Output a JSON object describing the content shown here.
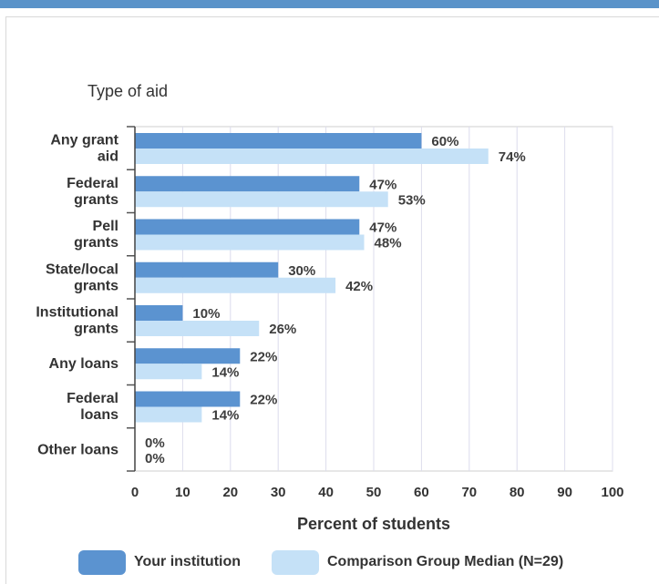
{
  "chart_data": {
    "type": "bar",
    "orientation": "horizontal",
    "title": "Type of aid",
    "xlabel": "Percent of students",
    "xlim": [
      0,
      100
    ],
    "xticks": [
      "0",
      "10",
      "20",
      "30",
      "40",
      "50",
      "60",
      "70",
      "80",
      "90",
      "100"
    ],
    "grid": true,
    "legend_position": "bottom",
    "categories": [
      [
        "Any grant",
        "aid"
      ],
      [
        "Federal",
        "grants"
      ],
      [
        "Pell",
        "grants"
      ],
      [
        "State/local",
        "grants"
      ],
      [
        "Institutional",
        "grants"
      ],
      [
        "Any loans"
      ],
      [
        "Federal",
        "loans"
      ],
      [
        "Other loans"
      ]
    ],
    "series": [
      {
        "name": "Your institution",
        "color": "#5b93d0",
        "values": [
          60,
          47,
          47,
          30,
          10,
          22,
          22,
          0
        ],
        "labels": [
          "60%",
          "47%",
          "47%",
          "30%",
          "10%",
          "22%",
          "22%",
          "0%"
        ]
      },
      {
        "name": "Comparison Group Median (N=29)",
        "color": "#c5e1f7",
        "values": [
          74,
          53,
          48,
          42,
          26,
          14,
          14,
          0
        ],
        "labels": [
          "74%",
          "53%",
          "48%",
          "42%",
          "26%",
          "14%",
          "14%",
          "0%"
        ]
      }
    ]
  },
  "legend": {
    "items": [
      {
        "label": "Your institution",
        "color": "#5b93d0"
      },
      {
        "label": "Comparison Group Median (N=29)",
        "color": "#c5e1f7"
      }
    ]
  }
}
